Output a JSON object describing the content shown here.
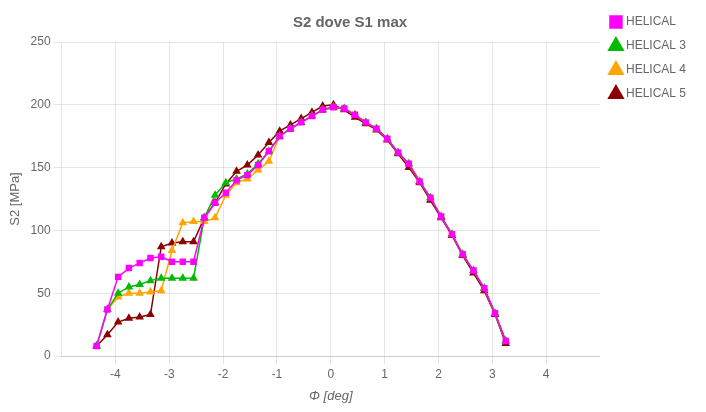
{
  "chart_data": {
    "type": "line",
    "title": "S2 dove S1 max",
    "xlabel": "Φ [deg]",
    "ylabel": "S2 [MPa]",
    "xlim": [
      -5,
      5
    ],
    "ylim": [
      0,
      250
    ],
    "xticks": [
      -4,
      -3,
      -2,
      -1,
      0,
      1,
      2,
      3,
      4
    ],
    "yticks": [
      0,
      50,
      100,
      150,
      200,
      250
    ],
    "grid": true,
    "legend": "upper right",
    "series": [
      {
        "name": "HELICAL",
        "color": "#FF00FF",
        "marker": "square",
        "x": [
          -4.35,
          -4.15,
          -3.95,
          -3.75,
          -3.55,
          -3.35,
          -3.15,
          -2.95,
          -2.75,
          -2.55,
          -2.35,
          -2.15,
          -1.95,
          -1.75,
          -1.55,
          -1.35,
          -1.15,
          -0.95,
          -0.75,
          -0.55,
          -0.35,
          -0.15,
          0.05,
          0.25,
          0.45,
          0.65,
          0.85,
          1.05,
          1.25,
          1.45,
          1.65,
          1.85,
          2.05,
          2.25,
          2.45,
          2.65,
          2.85,
          3.05,
          3.25
        ],
        "values": [
          8,
          37,
          63,
          70,
          74,
          78,
          79,
          75,
          75,
          75,
          110,
          122,
          130,
          140,
          144,
          152,
          163,
          175,
          181,
          186,
          191,
          196,
          198,
          197,
          192,
          186,
          181,
          173,
          162,
          153,
          139,
          126,
          111,
          97,
          81,
          68,
          54,
          34,
          12
        ]
      },
      {
        "name": "HELICAL 3",
        "color": "#00BB00",
        "marker": "triangle",
        "x": [
          -4.35,
          -4.15,
          -3.95,
          -3.75,
          -3.55,
          -3.35,
          -3.15,
          -2.95,
          -2.75,
          -2.55,
          -2.35,
          -2.15,
          -1.95,
          -1.75,
          -1.55,
          -1.35,
          -1.15,
          -0.95,
          -0.75,
          -0.55,
          -0.35,
          -0.15,
          0.05,
          0.25,
          0.45,
          0.65,
          0.85,
          1.05,
          1.25,
          1.45,
          1.65,
          1.85,
          2.05,
          2.25,
          2.45,
          2.65,
          2.85,
          3.05,
          3.25
        ],
        "values": [
          8,
          37,
          50,
          55,
          57,
          60,
          62,
          62,
          62,
          62,
          110,
          128,
          138,
          141,
          145,
          153,
          163,
          175,
          181,
          186,
          191,
          196,
          198,
          197,
          192,
          186,
          181,
          173,
          162,
          153,
          139,
          126,
          111,
          97,
          81,
          68,
          54,
          34,
          12
        ]
      },
      {
        "name": "HELICAL 4",
        "color": "#FFA500",
        "marker": "triangle",
        "x": [
          -4.15,
          -3.95,
          -3.75,
          -3.55,
          -3.35,
          -3.15,
          -2.95,
          -2.75,
          -2.55,
          -2.35,
          -2.15,
          -1.95,
          -1.75,
          -1.55,
          -1.35,
          -1.15,
          -0.95,
          -0.75,
          -0.55,
          -0.35,
          -0.15,
          0.05,
          0.25,
          0.45,
          0.65,
          0.85,
          1.05,
          1.25,
          1.45,
          1.65,
          1.85,
          2.05,
          2.25,
          2.45,
          2.65,
          2.85,
          3.05,
          3.25
        ],
        "values": [
          37,
          47,
          50,
          50,
          51,
          52,
          84,
          106,
          107,
          107,
          110,
          128,
          138,
          141,
          148,
          155,
          175,
          181,
          186,
          191,
          196,
          198,
          197,
          192,
          186,
          181,
          173,
          162,
          153,
          139,
          126,
          111,
          97,
          81,
          68,
          54,
          34,
          12
        ]
      },
      {
        "name": "HELICAL 5",
        "color": "#8B0000",
        "marker": "triangle",
        "x": [
          -4.35,
          -4.15,
          -3.95,
          -3.75,
          -3.55,
          -3.35,
          -3.15,
          -2.95,
          -2.75,
          -2.55,
          -2.35,
          -2.15,
          -1.95,
          -1.75,
          -1.55,
          -1.35,
          -1.15,
          -0.95,
          -0.75,
          -0.55,
          -0.35,
          -0.15,
          0.05,
          0.25,
          0.45,
          0.65,
          0.85,
          1.05,
          1.25,
          1.45,
          1.65,
          1.85,
          2.05,
          2.25,
          2.45,
          2.65,
          2.85,
          3.05,
          3.25
        ],
        "values": [
          8,
          17,
          27,
          30,
          31,
          33,
          87,
          90,
          91,
          91,
          110,
          122,
          137,
          147,
          152,
          160,
          170,
          179,
          184,
          189,
          194,
          199,
          200,
          196,
          190,
          185,
          180,
          172,
          161,
          150,
          138,
          124,
          110,
          96,
          80,
          66,
          52,
          33,
          10
        ]
      }
    ]
  }
}
